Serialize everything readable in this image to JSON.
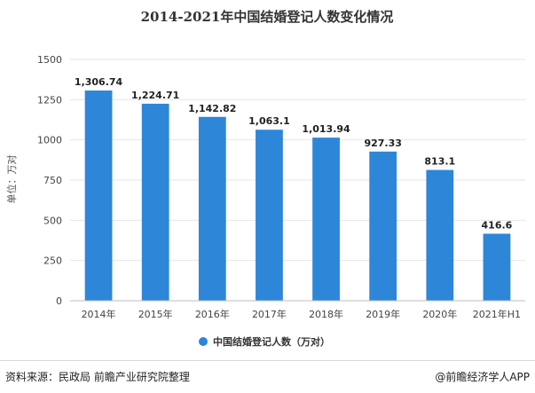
{
  "chart_data": {
    "type": "bar",
    "title": "2014-2021年中国结婚登记人数变化情况",
    "ylabel": "单位：万对",
    "categories": [
      "2014年",
      "2015年",
      "2016年",
      "2017年",
      "2018年",
      "2019年",
      "2020年",
      "2021年H1"
    ],
    "values": [
      1306.74,
      1224.71,
      1142.82,
      1063.1,
      1013.94,
      927.33,
      813.1,
      416.6
    ],
    "value_labels": [
      "1,306.74",
      "1,224.71",
      "1,142.82",
      "1,063.1",
      "1,013.94",
      "927.33",
      "813.1",
      "416.6"
    ],
    "yticks": [
      "0",
      "250",
      "500",
      "750",
      "1000",
      "1250",
      "1500"
    ],
    "ylim": [
      0,
      1500
    ],
    "grid": true,
    "legend": {
      "placement": "bottom-center",
      "label": "中国结婚登记人数（万对）"
    },
    "bar_color": "#2e86d9"
  },
  "footer": {
    "source": "资料来源：民政局 前瞻产业研究院整理",
    "brand": "@前瞻经济学人APP"
  }
}
